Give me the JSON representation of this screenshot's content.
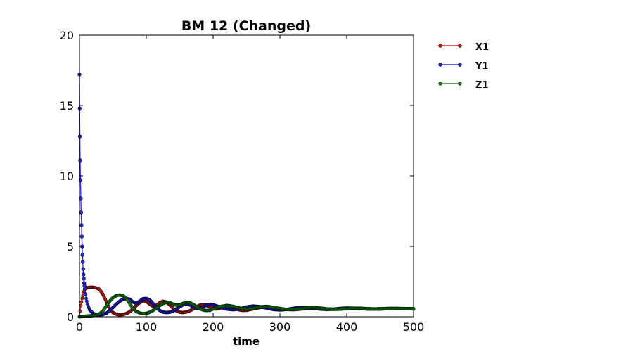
{
  "chart_data": {
    "type": "line",
    "title": "BM 12 (Changed)",
    "xlabel": "time",
    "ylabel": "",
    "xlim": [
      0,
      500
    ],
    "ylim": [
      0,
      20
    ],
    "xticks": [
      0,
      100,
      200,
      300,
      400,
      500
    ],
    "yticks": [
      0,
      5,
      10,
      15,
      20
    ],
    "grid": false,
    "legend_position": "outside-right-top",
    "series": [
      {
        "name": "X1",
        "color": "#d62728",
        "marker_edge": "#3a0000",
        "x": [
          0,
          2,
          4,
          6,
          8,
          10,
          15,
          20,
          25,
          30,
          35,
          40,
          45,
          50,
          55,
          60,
          65,
          70,
          75,
          80,
          85,
          90,
          95,
          100,
          105,
          110,
          115,
          120,
          125,
          130,
          135,
          140,
          145,
          150,
          155,
          160,
          165,
          170,
          175,
          180,
          185,
          190,
          195,
          200,
          205,
          210,
          215,
          220,
          225,
          230,
          235,
          240,
          245,
          250,
          260,
          270,
          280,
          290,
          300,
          310,
          320,
          330,
          340,
          350,
          360,
          370,
          380,
          390,
          400,
          410,
          420,
          430,
          440,
          450,
          460,
          470,
          480,
          490,
          500
        ],
        "y": [
          0.0,
          0.8,
          1.3,
          1.7,
          1.95,
          2.05,
          2.1,
          2.1,
          2.05,
          1.95,
          1.6,
          1.1,
          0.6,
          0.3,
          0.18,
          0.14,
          0.16,
          0.22,
          0.35,
          0.55,
          0.8,
          1.0,
          1.15,
          1.1,
          0.9,
          0.75,
          0.8,
          1.0,
          1.1,
          1.05,
          0.85,
          0.6,
          0.42,
          0.32,
          0.3,
          0.34,
          0.42,
          0.55,
          0.7,
          0.82,
          0.86,
          0.82,
          0.7,
          0.6,
          0.55,
          0.6,
          0.72,
          0.8,
          0.78,
          0.68,
          0.56,
          0.48,
          0.45,
          0.46,
          0.56,
          0.66,
          0.7,
          0.66,
          0.58,
          0.52,
          0.5,
          0.54,
          0.6,
          0.63,
          0.6,
          0.56,
          0.54,
          0.55,
          0.58,
          0.6,
          0.59,
          0.57,
          0.55,
          0.55,
          0.57,
          0.58,
          0.58,
          0.57,
          0.56
        ]
      },
      {
        "name": "Y1",
        "color": "#2b2bd6",
        "marker_edge": "#00004a",
        "x": [
          0,
          0.3,
          0.6,
          1,
          1.5,
          2,
          2.5,
          3,
          3.5,
          4,
          4.5,
          5,
          5.5,
          6,
          6.5,
          7,
          7.5,
          8,
          9,
          10,
          12,
          15,
          20,
          25,
          30,
          35,
          40,
          45,
          50,
          55,
          60,
          65,
          70,
          75,
          80,
          85,
          90,
          95,
          100,
          105,
          110,
          115,
          120,
          125,
          130,
          135,
          140,
          145,
          150,
          155,
          160,
          165,
          170,
          175,
          180,
          185,
          190,
          195,
          200,
          210,
          220,
          230,
          240,
          250,
          260,
          270,
          280,
          290,
          300,
          310,
          320,
          330,
          340,
          350,
          360,
          370,
          380,
          390,
          400,
          410,
          420,
          430,
          440,
          450,
          460,
          470,
          480,
          490,
          500
        ],
        "y": [
          17.2,
          14.8,
          12.8,
          11.1,
          9.7,
          8.4,
          7.4,
          6.5,
          5.7,
          5.0,
          4.4,
          3.9,
          3.4,
          3.0,
          2.7,
          2.4,
          2.2,
          2.0,
          1.6,
          1.3,
          0.9,
          0.5,
          0.25,
          0.15,
          0.13,
          0.16,
          0.25,
          0.42,
          0.65,
          0.9,
          1.1,
          1.25,
          1.3,
          1.25,
          1.05,
          0.95,
          1.1,
          1.28,
          1.3,
          1.2,
          0.95,
          0.65,
          0.45,
          0.33,
          0.3,
          0.32,
          0.4,
          0.55,
          0.72,
          0.85,
          0.9,
          0.85,
          0.72,
          0.62,
          0.6,
          0.7,
          0.82,
          0.88,
          0.85,
          0.7,
          0.55,
          0.5,
          0.56,
          0.7,
          0.76,
          0.72,
          0.62,
          0.52,
          0.48,
          0.52,
          0.6,
          0.66,
          0.66,
          0.6,
          0.55,
          0.52,
          0.54,
          0.59,
          0.62,
          0.61,
          0.58,
          0.55,
          0.55,
          0.57,
          0.59,
          0.59,
          0.58,
          0.57,
          0.57
        ]
      },
      {
        "name": "Z1",
        "color": "#228b22",
        "marker_edge": "#002a00",
        "x": [
          0,
          5,
          10,
          15,
          20,
          25,
          30,
          35,
          40,
          45,
          50,
          55,
          60,
          65,
          70,
          75,
          80,
          85,
          90,
          95,
          100,
          105,
          110,
          115,
          120,
          125,
          130,
          135,
          140,
          145,
          150,
          155,
          160,
          165,
          170,
          175,
          180,
          185,
          190,
          195,
          200,
          210,
          220,
          230,
          240,
          250,
          260,
          270,
          280,
          290,
          300,
          310,
          320,
          330,
          340,
          350,
          360,
          370,
          380,
          390,
          400,
          410,
          420,
          430,
          440,
          450,
          460,
          470,
          480,
          490,
          500
        ],
        "y": [
          0.0,
          0.02,
          0.04,
          0.06,
          0.08,
          0.12,
          0.2,
          0.4,
          0.75,
          1.1,
          1.35,
          1.5,
          1.55,
          1.5,
          1.3,
          0.95,
          0.6,
          0.38,
          0.27,
          0.22,
          0.24,
          0.32,
          0.45,
          0.62,
          0.8,
          0.95,
          1.02,
          1.0,
          0.9,
          0.82,
          0.85,
          0.95,
          1.02,
          1.0,
          0.88,
          0.72,
          0.58,
          0.48,
          0.44,
          0.46,
          0.55,
          0.72,
          0.8,
          0.74,
          0.62,
          0.55,
          0.6,
          0.7,
          0.74,
          0.68,
          0.58,
          0.52,
          0.52,
          0.58,
          0.64,
          0.66,
          0.62,
          0.56,
          0.53,
          0.54,
          0.58,
          0.61,
          0.61,
          0.58,
          0.56,
          0.56,
          0.57,
          0.59,
          0.59,
          0.58,
          0.57
        ]
      }
    ]
  }
}
